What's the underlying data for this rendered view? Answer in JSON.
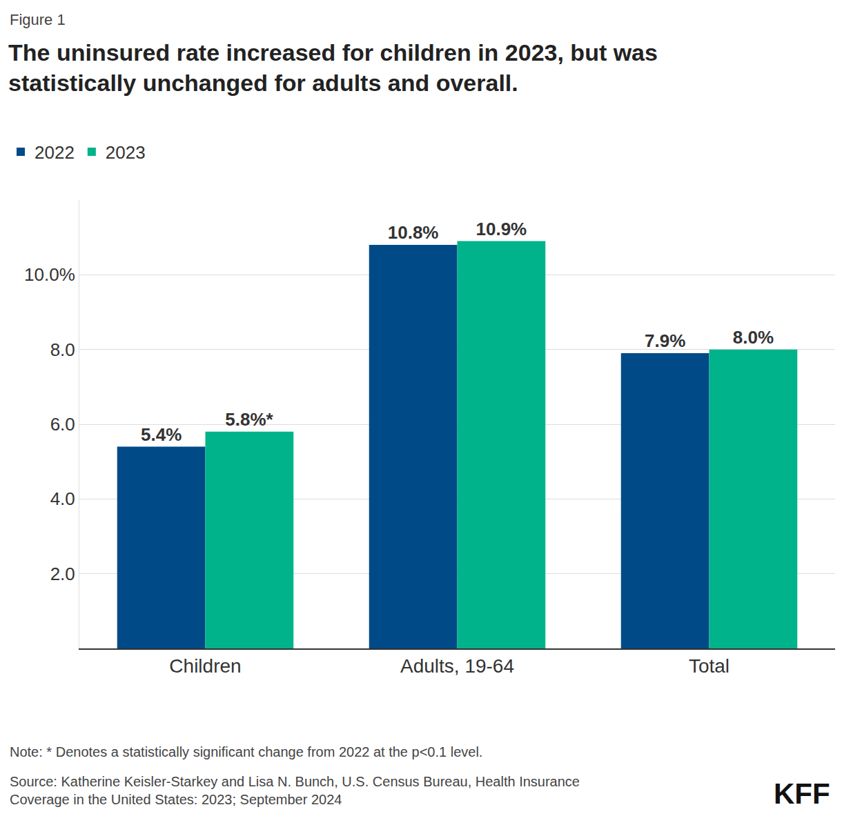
{
  "chart_data": {
    "type": "bar",
    "figure_label": "Figure 1",
    "title": "The uninsured rate increased for children in 2023, but was statistically unchanged for adults and overall.",
    "categories": [
      "Children",
      "Adults, 19-64",
      "Total"
    ],
    "series": [
      {
        "name": "2022",
        "color": "#004a87",
        "values": [
          5.4,
          10.8,
          7.9
        ],
        "value_labels": [
          "5.4%",
          "10.8%",
          "7.9%"
        ]
      },
      {
        "name": "2023",
        "color": "#00b38a",
        "values": [
          5.8,
          10.9,
          8.0
        ],
        "value_labels": [
          "5.8%*",
          "10.9%",
          "8.0%"
        ]
      }
    ],
    "ylim": [
      0,
      12
    ],
    "yticks": [
      {
        "value": 2,
        "label": "2.0"
      },
      {
        "value": 4,
        "label": "4.0"
      },
      {
        "value": 6,
        "label": "6.0"
      },
      {
        "value": 8,
        "label": "8.0"
      },
      {
        "value": 10,
        "label": "10.0%"
      }
    ],
    "grid": true,
    "legend": "top-left",
    "data_labels": true,
    "note": "Note: * Denotes a statistically significant change from 2022 at the p<0.1 level.",
    "source": "Source: Katherine Keisler-Starkey and Lisa N. Bunch, U.S. Census Bureau, Health Insurance Coverage in the United States: 2023; September 2024",
    "logo": "KFF"
  }
}
